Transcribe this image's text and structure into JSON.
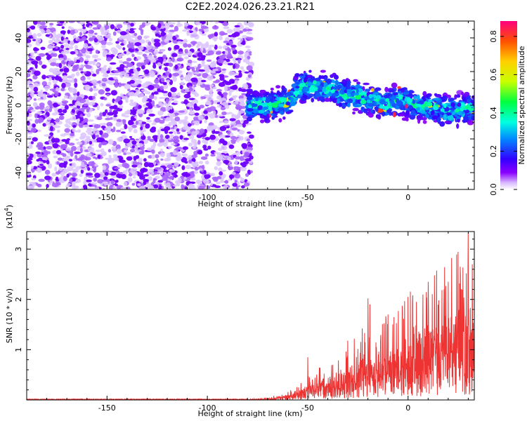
{
  "title": "C2E2.2024.026.23.21.R21",
  "chart_data": [
    {
      "type": "heatmap",
      "xlabel": "Height of straight line (km)",
      "ylabel": "Frequency (Hz)",
      "xlim": [
        -190,
        33
      ],
      "ylim": [
        -50,
        50
      ],
      "xticks": [
        -150,
        -100,
        -50,
        0
      ],
      "yticks": [
        -40,
        -20,
        0,
        20,
        40
      ],
      "colorbar": {
        "label": "Normalized spectral amplitude",
        "range": [
          0,
          0.88
        ],
        "ticks": [
          0.0,
          0.2,
          0.4,
          0.6,
          0.8
        ],
        "colormap": [
          "#ffffff",
          "#c890ff",
          "#7a00ff",
          "#2200ff",
          "#0088ff",
          "#00ffd0",
          "#00ff40",
          "#c0ff00",
          "#ffd000",
          "#ff5000",
          "#ff0080"
        ]
      },
      "noise_region_x": [
        -190,
        -80
      ],
      "signal_track": {
        "x": [
          -80,
          -70,
          -60,
          -55,
          -50,
          -45,
          -40,
          -35,
          -30,
          -25,
          -20,
          -15,
          -10,
          -5,
          0,
          5,
          10,
          15,
          20,
          25,
          30,
          33
        ],
        "y": [
          0,
          0,
          2,
          10,
          12,
          11,
          10,
          8,
          6,
          5,
          3,
          2,
          1,
          3,
          1,
          0,
          -1,
          -2,
          -4,
          -3,
          -2,
          -2
        ],
        "half_width_hz": 7,
        "peak_amplitude": 0.88
      }
    },
    {
      "type": "line",
      "xlabel": "Height of straight line (km)",
      "ylabel": "SNR (10 * v/v)",
      "y_multiplier": "(x10",
      "y_multiplier_exp": "4",
      "y_multiplier_close": ")",
      "xlim": [
        -190,
        33
      ],
      "ylim": [
        0,
        3.35
      ],
      "xticks": [
        -150,
        -100,
        -50,
        0
      ],
      "yticks": [
        1,
        2,
        3
      ],
      "color": "#ee3333",
      "envelope": {
        "x": [
          -190,
          -80,
          -70,
          -60,
          -55,
          -50,
          -45,
          -40,
          -35,
          -30,
          -25,
          -20,
          -15,
          -10,
          -5,
          0,
          5,
          10,
          15,
          20,
          25,
          30,
          33
        ],
        "y": [
          0.01,
          0.01,
          0.03,
          0.1,
          0.18,
          0.28,
          0.38,
          0.45,
          0.5,
          0.65,
          0.8,
          0.95,
          1.0,
          1.05,
          1.15,
          1.3,
          1.45,
          1.55,
          1.6,
          1.75,
          1.9,
          2.0,
          2.05
        ]
      },
      "peaks": [
        {
          "x": -50,
          "y": 0.85
        },
        {
          "x": -30,
          "y": 1.18
        },
        {
          "x": -20,
          "y": 2.02
        },
        {
          "x": -19,
          "y": 1.9
        },
        {
          "x": -10,
          "y": 1.7
        },
        {
          "x": 0,
          "y": 2.05
        },
        {
          "x": 10,
          "y": 2.35
        },
        {
          "x": 18,
          "y": 2.2
        },
        {
          "x": 20,
          "y": 2.35
        },
        {
          "x": 26,
          "y": 2.65
        },
        {
          "x": 30,
          "y": 3.33
        },
        {
          "x": 32,
          "y": 2.7
        }
      ]
    }
  ]
}
